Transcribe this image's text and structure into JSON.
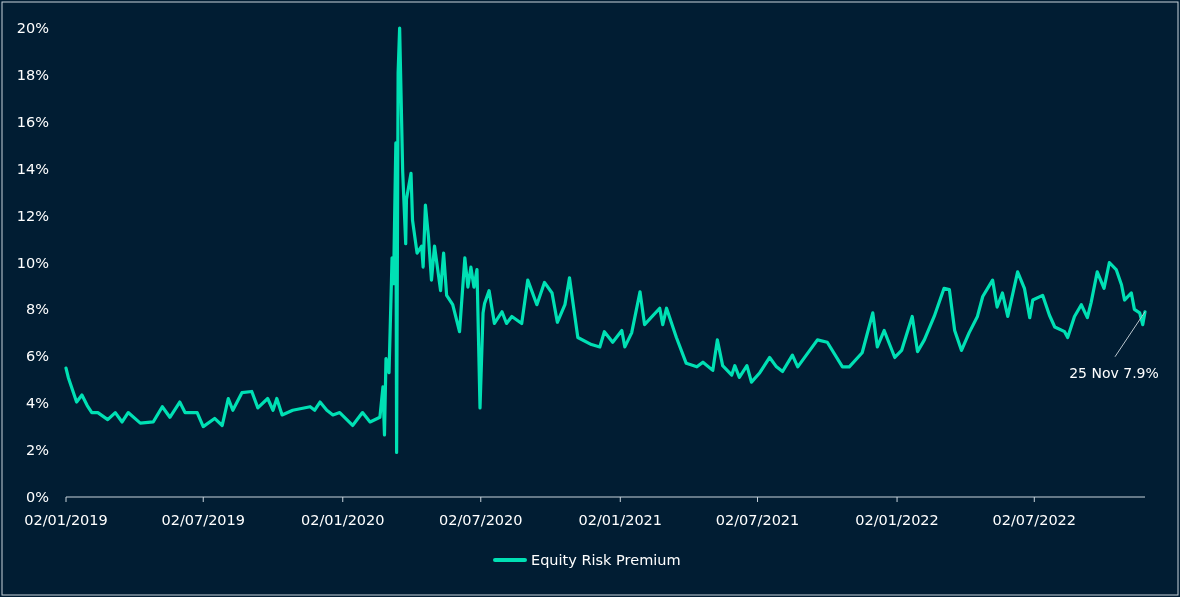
{
  "chart_data": {
    "type": "line",
    "xlim": [
      "2019-01-02",
      "2022-11-25"
    ],
    "xticks": [
      {
        "value": "2019-01-02",
        "label": "02/01/2019"
      },
      {
        "value": "2019-07-02",
        "label": "02/07/2019"
      },
      {
        "value": "2020-01-02",
        "label": "02/01/2020"
      },
      {
        "value": "2020-07-02",
        "label": "02/07/2020"
      },
      {
        "value": "2021-01-02",
        "label": "02/01/2021"
      },
      {
        "value": "2021-07-02",
        "label": "02/07/2021"
      },
      {
        "value": "2022-01-02",
        "label": "02/01/2022"
      },
      {
        "value": "2022-07-02",
        "label": "02/07/2022"
      }
    ],
    "ylim": [
      0,
      20
    ],
    "yticks": [
      {
        "value": 0,
        "label": "0%"
      },
      {
        "value": 2,
        "label": "2%"
      },
      {
        "value": 4,
        "label": "4%"
      },
      {
        "value": 6,
        "label": "6%"
      },
      {
        "value": 8,
        "label": "8%"
      },
      {
        "value": 10,
        "label": "10%"
      },
      {
        "value": 12,
        "label": "12%"
      },
      {
        "value": 14,
        "label": "14%"
      },
      {
        "value": 16,
        "label": "16%"
      },
      {
        "value": 18,
        "label": "18%"
      },
      {
        "value": 20,
        "label": "20%"
      }
    ],
    "grid": false,
    "legend": "bottom",
    "marker": "none",
    "line_style": "solid",
    "annotations": [
      {
        "text": "25 Nov 7.9%",
        "x": "2022-11-25",
        "y": 7.9
      }
    ],
    "series": [
      {
        "name": "Equity Risk Premium",
        "color": "#00e0b4",
        "x": [
          "2019-01-02",
          "2019-01-05",
          "2019-01-16",
          "2019-01-23",
          "2019-01-30",
          "2019-02-05",
          "2019-02-13",
          "2019-02-26",
          "2019-03-08",
          "2019-03-17",
          "2019-03-25",
          "2019-04-10",
          "2019-04-27",
          "2019-05-09",
          "2019-05-19",
          "2019-06-01",
          "2019-06-08",
          "2019-06-24",
          "2019-07-02",
          "2019-07-17",
          "2019-07-27",
          "2019-08-04",
          "2019-08-10",
          "2019-08-22",
          "2019-09-04",
          "2019-09-12",
          "2019-09-25",
          "2019-10-02",
          "2019-10-07",
          "2019-10-14",
          "2019-10-28",
          "2019-11-20",
          "2019-11-26",
          "2019-12-03",
          "2019-12-12",
          "2019-12-20",
          "2019-12-29",
          "2020-01-15",
          "2020-01-28",
          "2020-02-07",
          "2020-02-20",
          "2020-02-24",
          "2020-02-26",
          "2020-02-28",
          "2020-03-03",
          "2020-03-07",
          "2020-03-09",
          "2020-03-12",
          "2020-03-13",
          "2020-03-15",
          "2020-03-17",
          "2020-03-21",
          "2020-03-25",
          "2020-03-26",
          "2020-04-01",
          "2020-04-03",
          "2020-04-09",
          "2020-04-15",
          "2020-04-17",
          "2020-04-20",
          "2020-04-24",
          "2020-04-28",
          "2020-05-02",
          "2020-05-10",
          "2020-05-14",
          "2020-05-18",
          "2020-05-26",
          "2020-06-04",
          "2020-06-11",
          "2020-06-15",
          "2020-06-19",
          "2020-06-23",
          "2020-06-27",
          "2020-07-01",
          "2020-07-05",
          "2020-07-07",
          "2020-07-13",
          "2020-07-20",
          "2020-07-30",
          "2020-08-05",
          "2020-08-12",
          "2020-08-25",
          "2020-09-02",
          "2020-09-14",
          "2020-09-24",
          "2020-10-04",
          "2020-10-11",
          "2020-10-21",
          "2020-10-27",
          "2020-11-07",
          "2020-11-25",
          "2020-12-06",
          "2020-12-12",
          "2020-12-23",
          "2021-01-04",
          "2021-01-08",
          "2021-01-17",
          "2021-01-28",
          "2021-02-03",
          "2021-02-23",
          "2021-02-27",
          "2021-03-04",
          "2021-03-17",
          "2021-03-30",
          "2021-04-13",
          "2021-04-21",
          "2021-05-04",
          "2021-05-10",
          "2021-05-17",
          "2021-05-29",
          "2021-06-02",
          "2021-06-08",
          "2021-06-18",
          "2021-06-24",
          "2021-07-05",
          "2021-07-18",
          "2021-07-27",
          "2021-08-04",
          "2021-08-17",
          "2021-08-24",
          "2021-09-19",
          "2021-10-02",
          "2021-10-22",
          "2021-10-31",
          "2021-11-17",
          "2021-12-01",
          "2021-12-07",
          "2021-12-16",
          "2021-12-30",
          "2022-01-08",
          "2022-01-22",
          "2022-01-29",
          "2022-02-07",
          "2022-02-20",
          "2022-03-05",
          "2022-03-12",
          "2022-03-19",
          "2022-03-28",
          "2022-04-07",
          "2022-04-18",
          "2022-04-25",
          "2022-05-08",
          "2022-05-14",
          "2022-05-21",
          "2022-05-28",
          "2022-06-10",
          "2022-06-19",
          "2022-06-26",
          "2022-06-30",
          "2022-07-13",
          "2022-07-22",
          "2022-07-29",
          "2022-08-11",
          "2022-08-15",
          "2022-08-24",
          "2022-09-02",
          "2022-09-10",
          "2022-09-15",
          "2022-09-23",
          "2022-10-02",
          "2022-10-09",
          "2022-10-18",
          "2022-10-25",
          "2022-10-29",
          "2022-11-07",
          "2022-11-11",
          "2022-11-18",
          "2022-11-22",
          "2022-11-25"
        ],
        "values": [
          5.5,
          5.1,
          4.05,
          4.35,
          3.9,
          3.6,
          3.6,
          3.3,
          3.6,
          3.2,
          3.6,
          3.15,
          3.2,
          3.85,
          3.4,
          4.05,
          3.6,
          3.6,
          3.0,
          3.35,
          3.05,
          4.2,
          3.7,
          4.45,
          4.5,
          3.8,
          4.2,
          3.7,
          4.2,
          3.5,
          3.7,
          3.85,
          3.7,
          4.05,
          3.7,
          3.5,
          3.6,
          3.05,
          3.6,
          3.2,
          3.4,
          4.7,
          2.65,
          5.9,
          5.3,
          10.2,
          9.1,
          15.1,
          1.9,
          18.1,
          20.0,
          13.9,
          10.8,
          12.7,
          13.8,
          11.8,
          10.4,
          10.7,
          9.8,
          12.45,
          11.1,
          9.25,
          10.7,
          8.8,
          10.4,
          8.6,
          8.2,
          7.05,
          10.2,
          8.95,
          9.8,
          8.95,
          9.7,
          3.8,
          7.85,
          8.25,
          8.8,
          7.4,
          7.9,
          7.4,
          7.7,
          7.4,
          9.25,
          8.2,
          9.15,
          8.7,
          7.45,
          8.2,
          9.35,
          6.8,
          6.5,
          6.4,
          7.05,
          6.6,
          7.1,
          6.4,
          7.0,
          8.75,
          7.35,
          8.05,
          7.35,
          8.05,
          6.8,
          5.7,
          5.55,
          5.75,
          5.4,
          6.7,
          5.6,
          5.2,
          5.6,
          5.1,
          5.6,
          4.9,
          5.3,
          5.95,
          5.55,
          5.35,
          6.05,
          5.55,
          6.7,
          6.6,
          5.55,
          5.55,
          6.15,
          7.85,
          6.4,
          7.1,
          5.95,
          6.25,
          7.7,
          6.2,
          6.7,
          7.7,
          8.9,
          8.85,
          7.1,
          6.25,
          7.0,
          7.7,
          8.55,
          9.25,
          8.1,
          8.7,
          7.7,
          9.6,
          8.9,
          7.65,
          8.4,
          8.6,
          7.75,
          7.25,
          7.05,
          6.8,
          7.7,
          8.2,
          7.65,
          8.3,
          9.6,
          8.9,
          10.0,
          9.7,
          9.05,
          8.4,
          8.7,
          8.0,
          7.85,
          7.35,
          7.9
        ]
      }
    ]
  }
}
